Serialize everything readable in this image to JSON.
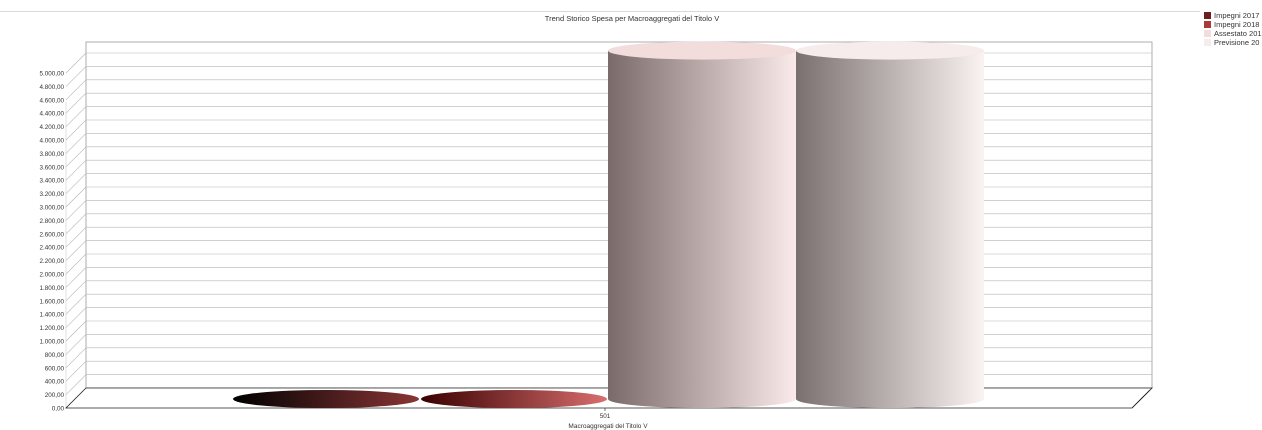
{
  "chart_data": {
    "type": "bar",
    "title": "Trend Storico Spesa per Macroaggregati del Titolo V",
    "xlabel": "Macroaggregati del Titolo V",
    "ylabel": "",
    "categories": [
      "501"
    ],
    "ylim": [
      0,
      5000
    ],
    "yticks": [
      0,
      200,
      400,
      600,
      800,
      1000,
      1200,
      1400,
      1600,
      1800,
      2000,
      2200,
      2400,
      2600,
      2800,
      3000,
      3200,
      3400,
      3600,
      3800,
      4000,
      4200,
      4400,
      4600,
      4800,
      5000
    ],
    "ytick_labels": [
      "0,00",
      "200,00",
      "400,00",
      "600,00",
      "800,00",
      "1.000,00",
      "1.200,00",
      "1.400,00",
      "1.600,00",
      "1.800,00",
      "2.000,00",
      "2.200,00",
      "2.400,00",
      "2.600,00",
      "2.800,00",
      "3.000,00",
      "3.200,00",
      "3.400,00",
      "3.600,00",
      "3.800,00",
      "4.000,00",
      "4.200,00",
      "4.400,00",
      "4.600,00",
      "4.800,00",
      "5.000,00"
    ],
    "grid": true,
    "legend_position": "top-right",
    "series": [
      {
        "name": "Impegni 2017",
        "values": [
          0
        ],
        "color": "#6b1f1f",
        "gradient": [
          "#000000",
          "#8a3535"
        ]
      },
      {
        "name": "Impegni 2018",
        "values": [
          0
        ],
        "color": "#a83a3a",
        "gradient": [
          "#3a0000",
          "#d96e6e"
        ]
      },
      {
        "name": "Assestato 201",
        "values": [
          5200
        ],
        "color": "#f3dcdc",
        "gradient": [
          "#7a6a6a",
          "#fbeaea"
        ]
      },
      {
        "name": "Previsione 20",
        "values": [
          5200
        ],
        "color": "#f7ecec",
        "gradient": [
          "#7a7070",
          "#fbf2f2"
        ]
      }
    ]
  }
}
